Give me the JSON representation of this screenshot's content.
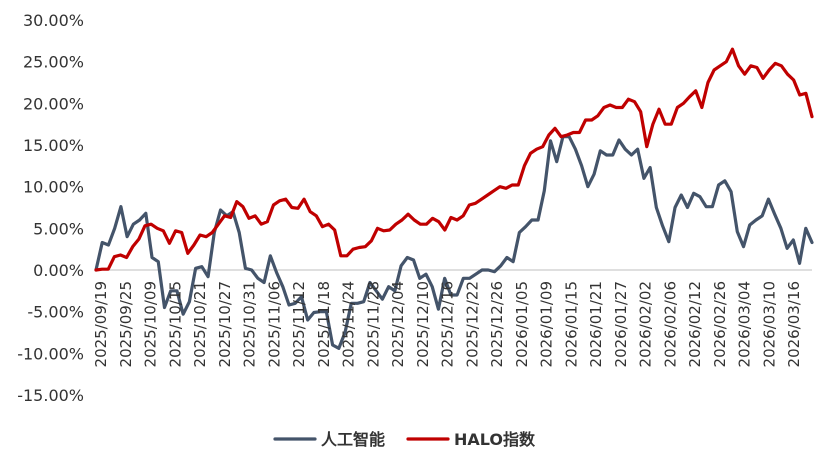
{
  "chart_data": {
    "type": "line",
    "title": "",
    "xlabel": "",
    "ylabel": "",
    "ylim": [
      -15,
      30
    ],
    "y_ticks": [
      30,
      25,
      20,
      15,
      10,
      5,
      0,
      -5,
      -10,
      -15
    ],
    "y_tick_labels": [
      "30.00%",
      "25.00%",
      "20.00%",
      "15.00%",
      "10.00%",
      "5.00%",
      "0.00%",
      "-5.00%",
      "-10.00%",
      "-15.00%"
    ],
    "x_tick_labels": [
      "2025/09/19",
      "2025/09/25",
      "2025/10/09",
      "2025/10/15",
      "2025/10/21",
      "2025/10/27",
      "2025/10/31",
      "2025/11/06",
      "2025/11/12",
      "2025/11/18",
      "2025/11/24",
      "2025/11/28",
      "2025/12/04",
      "2025/12/10",
      "2025/12/16",
      "2025/12/22",
      "2025/12/26",
      "2026/01/05",
      "2026/01/09",
      "2026/01/15",
      "2026/01/21",
      "2026/01/27",
      "2026/02/02",
      "2026/02/06",
      "2026/02/12",
      "2026/02/26",
      "2026/03/04",
      "2026/03/10",
      "2026/03/16"
    ],
    "legend_position": "bottom",
    "grid": false,
    "series": [
      {
        "name": "人工智能",
        "color": "#44546a",
        "values": [
          0,
          3.3,
          3.0,
          5.0,
          7.6,
          4.0,
          5.5,
          6.0,
          6.8,
          1.5,
          1.0,
          -4.5,
          -2.5,
          -2.5,
          -5.3,
          -3.8,
          0.2,
          0.4,
          -0.8,
          4.5,
          7.2,
          6.5,
          7.0,
          4.5,
          0.2,
          0.0,
          -1.0,
          -1.5,
          1.7,
          -0.3,
          -2.0,
          -4.2,
          -4.0,
          -3.2,
          -6.0,
          -5.1,
          -5.0,
          -5.0,
          -9.0,
          -9.4,
          -7.5,
          -4.0,
          -4.0,
          -3.8,
          -1.5,
          -2.5,
          -3.5,
          -2.0,
          -2.5,
          0.5,
          1.5,
          1.2,
          -1.0,
          -0.5,
          -2.0,
          -4.7,
          -1.0,
          -3.0,
          -3.0,
          -1.0,
          -1.0,
          -0.5,
          0.0,
          0.0,
          -0.2,
          0.5,
          1.5,
          1.0,
          4.5,
          5.2,
          6.0,
          6.0,
          9.5,
          15.5,
          13.0,
          16.0,
          16.0,
          14.5,
          12.5,
          10.0,
          11.5,
          14.3,
          13.8,
          13.8,
          15.6,
          14.5,
          13.8,
          14.5,
          11.0,
          12.3,
          7.5,
          5.3,
          3.4,
          7.5,
          9.0,
          7.5,
          9.2,
          8.8,
          7.6,
          7.6,
          10.2,
          10.7,
          9.4,
          4.6,
          2.8,
          5.4,
          6.0,
          6.5,
          8.5,
          6.7,
          5.0,
          2.6,
          3.6,
          0.8,
          5.0,
          3.3
        ]
      },
      {
        "name": "HALO指数",
        "color": "#c00000",
        "values": [
          0,
          0.1,
          0.1,
          1.6,
          1.8,
          1.5,
          2.8,
          3.7,
          5.3,
          5.5,
          5.0,
          4.7,
          3.2,
          4.7,
          4.5,
          2.0,
          3.0,
          4.2,
          4.0,
          4.5,
          5.5,
          6.5,
          6.3,
          8.2,
          7.6,
          6.2,
          6.5,
          5.5,
          5.8,
          7.8,
          8.3,
          8.5,
          7.5,
          7.4,
          8.5,
          7.0,
          6.5,
          5.2,
          5.5,
          4.8,
          1.7,
          1.7,
          2.5,
          2.7,
          2.8,
          3.5,
          5.0,
          4.7,
          4.8,
          5.5,
          6.0,
          6.7,
          6.0,
          5.5,
          5.5,
          6.2,
          5.8,
          4.8,
          6.3,
          6.0,
          6.5,
          7.8,
          8.0,
          8.5,
          9.0,
          9.5,
          10.0,
          9.8,
          10.2,
          10.2,
          12.5,
          14.0,
          14.5,
          14.8,
          16.2,
          17.0,
          16.0,
          16.2,
          16.5,
          16.5,
          18.0,
          18.0,
          18.5,
          19.5,
          19.8,
          19.5,
          19.5,
          20.5,
          20.2,
          19.0,
          14.8,
          17.5,
          19.3,
          17.5,
          17.5,
          19.5,
          20.0,
          20.8,
          21.5,
          19.5,
          22.5,
          24.0,
          24.5,
          25.0,
          26.5,
          24.5,
          23.5,
          24.5,
          24.3,
          23.0,
          24.0,
          24.8,
          24.5,
          23.5,
          22.8,
          21.0,
          21.2,
          18.4
        ]
      }
    ]
  }
}
